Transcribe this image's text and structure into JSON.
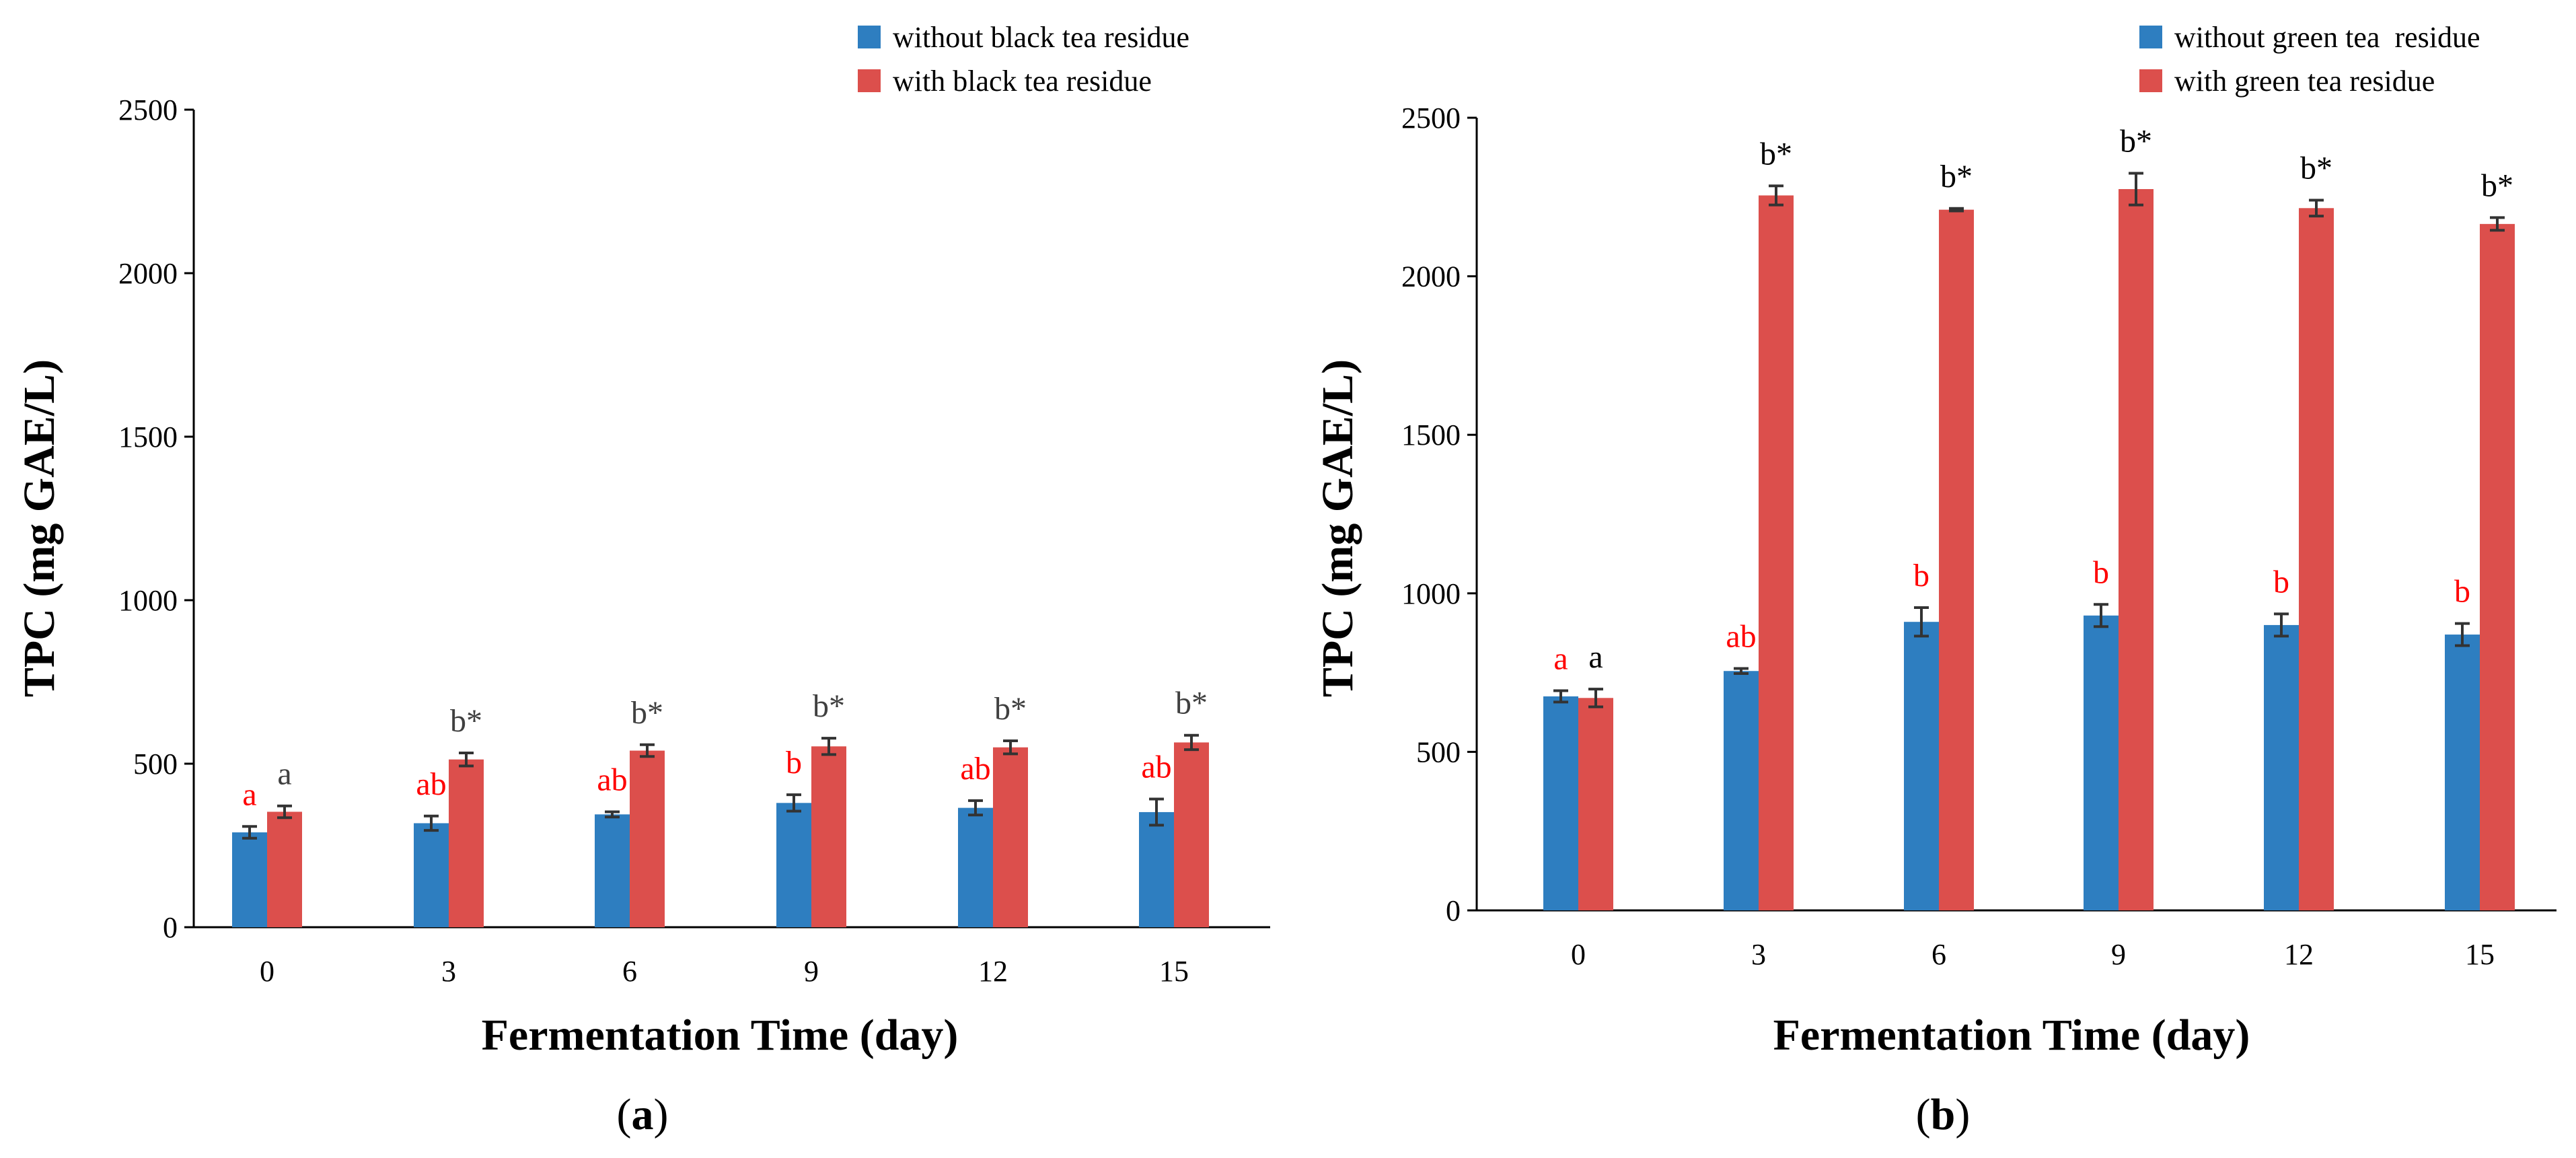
{
  "colors": {
    "blue": "#2E7EC0",
    "red": "#DC4F4C",
    "red_letter": "#FF0000",
    "black": "#000000",
    "grey_letter": "#404040",
    "error_bar": "#333333"
  },
  "chart_data": [
    {
      "type": "bar",
      "panel_label": "(a)",
      "panel_letter": "a",
      "ylabel": "TPC (mg GAE/L)",
      "xlabel": "Fermentation Time (day)",
      "ylim": [
        0,
        2500
      ],
      "yticks": [
        "0",
        "500",
        "1000",
        "1500",
        "2000",
        "2500"
      ],
      "categories": [
        "0",
        "3",
        "6",
        "9",
        "12",
        "15"
      ],
      "legend_position": "top-right",
      "series": [
        {
          "name": "without black tea residue",
          "color_key": "blue",
          "values": [
            290,
            318,
            345,
            380,
            365,
            352
          ],
          "errors": [
            18,
            22,
            8,
            25,
            22,
            40
          ],
          "annotations": [
            "a",
            "ab",
            "ab",
            "b",
            "ab",
            "ab"
          ],
          "annotation_color_key": "red_letter"
        },
        {
          "name": "with black tea residue",
          "color_key": "red",
          "values": [
            353,
            513,
            540,
            553,
            550,
            565
          ],
          "errors": [
            18,
            20,
            18,
            25,
            20,
            22
          ],
          "annotations": [
            "a",
            "b*",
            "b*",
            "b*",
            "b*",
            "b*"
          ],
          "annotation_color_key": "grey_letter"
        }
      ]
    },
    {
      "type": "bar",
      "panel_label": "(b)",
      "panel_letter": "b",
      "ylabel": "TPC (mg GAE/L)",
      "xlabel": "Fermentation Time (day)",
      "ylim": [
        0,
        2500
      ],
      "yticks": [
        "0",
        "500",
        "1000",
        "1500",
        "2000",
        "2500"
      ],
      "categories": [
        "0",
        "3",
        "6",
        "9",
        "12",
        "15"
      ],
      "legend_position": "top-right",
      "series": [
        {
          "name": "without green tea  residue",
          "color_key": "blue",
          "values": [
            675,
            755,
            910,
            930,
            900,
            870
          ],
          "errors": [
            18,
            8,
            45,
            35,
            35,
            35
          ],
          "annotations": [
            "a",
            "ab",
            "b",
            "b",
            "b",
            "b"
          ],
          "annotation_color_key": "red_letter"
        },
        {
          "name": "with green tea residue",
          "color_key": "red",
          "values": [
            670,
            2255,
            2210,
            2275,
            2215,
            2165
          ],
          "errors": [
            28,
            30,
            4,
            50,
            25,
            20
          ],
          "annotations": [
            "a",
            "b*",
            "b*",
            "b*",
            "b*",
            "b*"
          ],
          "annotation_color_key": "black"
        }
      ]
    }
  ]
}
